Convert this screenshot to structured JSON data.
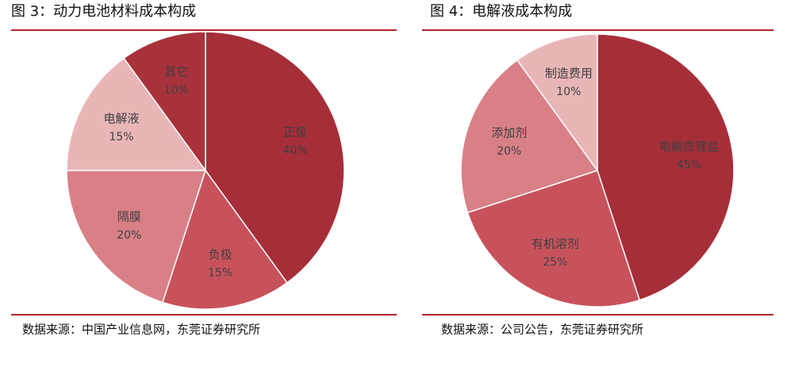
{
  "chart_data": [
    {
      "type": "pie",
      "title": "图 3：动力电池材料成本构成",
      "source": "数据来源：中国产业信息网，东莞证券研究所",
      "categories": [
        "正极",
        "负极",
        "隔膜",
        "电解液",
        "其它"
      ],
      "values": [
        40,
        15,
        20,
        15,
        10
      ],
      "value_labels": [
        "40%",
        "15%",
        "20%",
        "15%",
        "10%"
      ],
      "colors": [
        "#a62e39",
        "#c8525b",
        "#d98086",
        "#e9b6b8",
        "#a8323b"
      ]
    },
    {
      "type": "pie",
      "title": "图 4：电解液成本构成",
      "source": "数据来源：公司公告，东莞证券研究所",
      "categories": [
        "电解质锂盐",
        "有机溶剂",
        "添加剂",
        "制造费用"
      ],
      "values": [
        45,
        25,
        20,
        10
      ],
      "value_labels": [
        "45%",
        "25%",
        "20%",
        "10%"
      ],
      "colors": [
        "#a62e39",
        "#c8525b",
        "#d98086",
        "#e9b6b8"
      ]
    }
  ]
}
